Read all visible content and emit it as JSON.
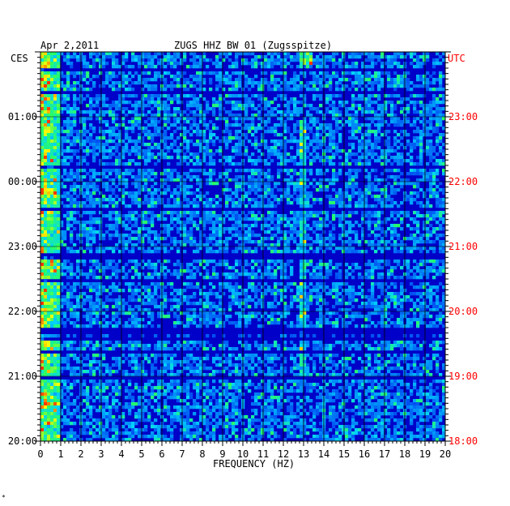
{
  "header": {
    "date": "Apr 2,2011",
    "station": "ZUGS HHZ BW 01 (Zugsspitze)",
    "left_zone": "CES",
    "right_zone": "UTC",
    "footnote": "*"
  },
  "colors": {
    "background": "#0000c8",
    "utc_label": "#ff0000",
    "tick": "#000000"
  },
  "chart_data": {
    "type": "heatmap",
    "xlabel": "FREQUENCY (HZ)",
    "xlim": [
      0,
      20
    ],
    "x_ticks": [
      "0",
      "1",
      "2",
      "3",
      "4",
      "5",
      "6",
      "7",
      "8",
      "9",
      "10",
      "11",
      "12",
      "13",
      "14",
      "15",
      "16",
      "17",
      "18",
      "19",
      "20"
    ],
    "y_ticks_left": [
      "01:00",
      "00:00",
      "23:00",
      "22:00",
      "21:00",
      "20:00"
    ],
    "y_ticks_right": [
      "23:00",
      "22:00",
      "21:00",
      "20:00",
      "19:00",
      "18:00"
    ],
    "y_range_hours": 6,
    "features": [
      {
        "name": "low frequency energy",
        "x_range": [
          0,
          1
        ]
      },
      {
        "name": "13 Hz line",
        "x_range": [
          12.8,
          13.2
        ]
      }
    ]
  }
}
